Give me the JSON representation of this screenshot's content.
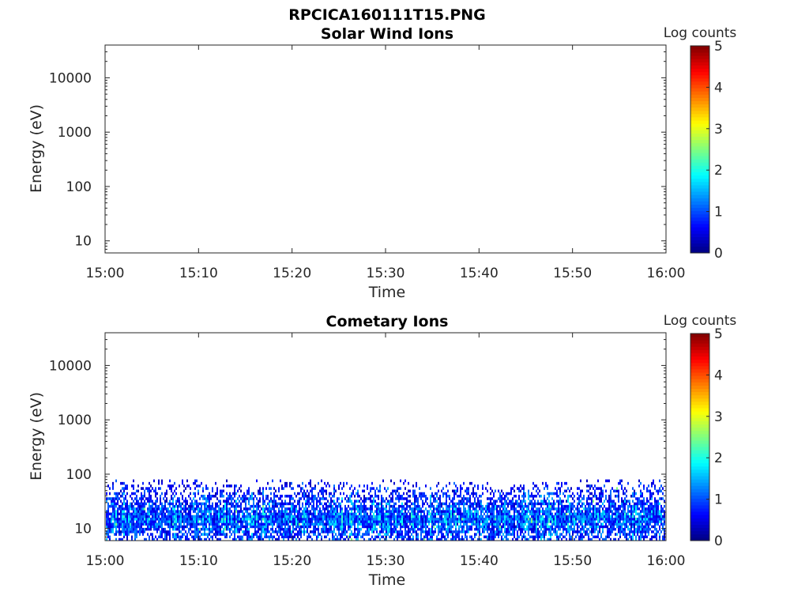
{
  "figure": {
    "filename_title": "RPCICA160111T15.PNG"
  },
  "colorbar": {
    "label": "Log counts",
    "ticks": [
      "0",
      "1",
      "2",
      "3",
      "4",
      "5"
    ],
    "range": [
      0,
      5
    ],
    "colormap": "jet"
  },
  "chart_data": [
    {
      "type": "heatmap",
      "title": "Solar Wind Ions",
      "xlabel": "Time",
      "ylabel": "Energy (eV)",
      "x_ticks": [
        "15:00",
        "15:10",
        "15:20",
        "15:30",
        "15:40",
        "15:50",
        "16:00"
      ],
      "x_range": [
        "15:00",
        "16:00"
      ],
      "y_ticks": [
        "10",
        "100",
        "1000",
        "10000"
      ],
      "y_scale": "log",
      "y_range": [
        6,
        40000
      ],
      "color_label": "Log counts",
      "color_range": [
        0,
        5
      ],
      "data": "empty (no counts)"
    },
    {
      "type": "heatmap",
      "title": "Cometary Ions",
      "xlabel": "Time",
      "ylabel": "Energy (eV)",
      "x_ticks": [
        "15:00",
        "15:10",
        "15:20",
        "15:30",
        "15:40",
        "15:50",
        "16:00"
      ],
      "x_range": [
        "15:00",
        "16:00"
      ],
      "y_ticks": [
        "10",
        "100",
        "1000",
        "10000"
      ],
      "y_scale": "log",
      "y_range": [
        6,
        40000
      ],
      "color_label": "Log counts",
      "color_range": [
        0,
        5
      ],
      "data": {
        "energy_band_eV": [
          6,
          80
        ],
        "peak_energy_eV": 15,
        "typical_log_counts": [
          0.5,
          2.0
        ],
        "max_log_counts": 2.5
      }
    }
  ]
}
